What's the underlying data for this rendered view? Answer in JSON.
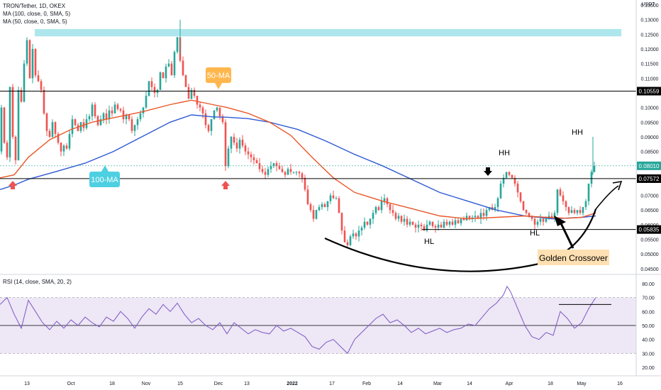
{
  "legend": {
    "title": "TRON/Tether, 1D, OKEX",
    "ma100": "MA (100, close, 0, SMA, 5)",
    "ma50": "MA (50, close, 0, SMA, 5)",
    "rsi": "RSI (14, close, SMA, 20, 2)"
  },
  "currency": "USDT",
  "annotations": {
    "ma50_label": "50-MA",
    "ma100_label": "100-MA",
    "golden_crossover": "Golden Crossover",
    "hh1": "HH",
    "hh2": "HH",
    "hl1": "HL",
    "hl2": "HL"
  },
  "price_badges": {
    "resistance": "0.10559",
    "current": "0.08010",
    "neckline": "0.07572",
    "support": "0.05835"
  },
  "colors": {
    "bull": "#26a69a",
    "bear": "#ef5350",
    "ma100": "#2f5bd3",
    "ma50": "#e8572a",
    "rsi": "#7e57c2",
    "rsi_band": "#ede7f6",
    "zone": "#9fe3ea"
  },
  "chart_data": {
    "type": "candlestick",
    "price_axis": {
      "ticks": [
        "0.13500",
        "0.13000",
        "0.12500",
        "0.12000",
        "0.11500",
        "0.11000",
        "0.10500",
        "0.10000",
        "0.09500",
        "0.09000",
        "0.08500",
        "0.08000",
        "0.07500",
        "0.07000",
        "0.06500",
        "0.06000",
        "0.05500",
        "0.05000",
        "0.04500"
      ],
      "range": [
        0.0435,
        0.1355
      ]
    },
    "time_axis": {
      "labels": [
        "13",
        "Oct",
        "18",
        "Nov",
        "15",
        "Dec",
        "13",
        "2022",
        "17",
        "Feb",
        "14",
        "Mar",
        "14",
        "Apr",
        "18",
        "May",
        "16"
      ]
    },
    "levels": [
      {
        "name": "resistance",
        "value": 0.10559
      },
      {
        "name": "neckline",
        "value": 0.07572
      },
      {
        "name": "support",
        "value": 0.05835
      },
      {
        "name": "resistance-zone",
        "from": 0.1243,
        "to": 0.1268
      }
    ],
    "ohlc_path": [
      [
        0,
        0.085
      ],
      [
        4,
        0.1
      ],
      [
        8,
        0.088
      ],
      [
        12,
        0.083
      ],
      [
        16,
        0.107
      ],
      [
        20,
        0.09
      ],
      [
        24,
        0.082
      ],
      [
        28,
        0.106
      ],
      [
        32,
        0.102
      ],
      [
        36,
        0.115
      ],
      [
        40,
        0.123
      ],
      [
        44,
        0.11
      ],
      [
        48,
        0.12
      ],
      [
        52,
        0.111
      ],
      [
        56,
        0.109
      ],
      [
        60,
        0.106
      ],
      [
        64,
        0.098
      ],
      [
        68,
        0.092
      ],
      [
        72,
        0.09
      ],
      [
        76,
        0.095
      ],
      [
        80,
        0.091
      ],
      [
        84,
        0.088
      ],
      [
        88,
        0.085
      ],
      [
        92,
        0.087
      ],
      [
        96,
        0.086
      ],
      [
        100,
        0.091
      ],
      [
        104,
        0.096
      ],
      [
        108,
        0.094
      ],
      [
        112,
        0.092
      ],
      [
        116,
        0.095
      ],
      [
        120,
        0.093
      ],
      [
        124,
        0.096
      ],
      [
        128,
        0.097
      ],
      [
        132,
        0.101
      ],
      [
        136,
        0.097
      ],
      [
        140,
        0.094
      ],
      [
        144,
        0.096
      ],
      [
        148,
        0.098
      ],
      [
        152,
        0.096
      ],
      [
        156,
        0.099
      ],
      [
        160,
        0.098
      ],
      [
        164,
        0.101
      ],
      [
        168,
        0.0995
      ],
      [
        172,
        0.099
      ],
      [
        176,
        0.096
      ],
      [
        180,
        0.0975
      ],
      [
        184,
        0.096
      ],
      [
        188,
        0.092
      ],
      [
        192,
        0.094
      ],
      [
        196,
        0.096
      ],
      [
        200,
        0.098
      ],
      [
        204,
        0.1
      ],
      [
        208,
        0.104
      ],
      [
        212,
        0.109
      ],
      [
        216,
        0.107
      ],
      [
        220,
        0.105
      ],
      [
        224,
        0.106
      ],
      [
        228,
        0.112
      ],
      [
        232,
        0.11
      ],
      [
        236,
        0.114
      ],
      [
        240,
        0.115
      ],
      [
        244,
        0.111
      ],
      [
        248,
        0.119
      ],
      [
        252,
        0.124
      ],
      [
        256,
        0.116
      ],
      [
        260,
        0.111
      ],
      [
        264,
        0.107
      ],
      [
        268,
        0.103
      ],
      [
        272,
        0.106
      ],
      [
        276,
        0.104
      ],
      [
        280,
        0.101
      ],
      [
        284,
        0.1
      ],
      [
        288,
        0.098
      ],
      [
        292,
        0.094
      ],
      [
        296,
        0.092
      ],
      [
        300,
        0.096
      ],
      [
        304,
        0.099
      ],
      [
        308,
        0.1
      ],
      [
        312,
        0.097
      ],
      [
        316,
        0.095
      ],
      [
        320,
        0.08
      ],
      [
        324,
        0.086
      ],
      [
        328,
        0.09
      ],
      [
        332,
        0.088
      ],
      [
        336,
        0.086
      ],
      [
        340,
        0.089
      ],
      [
        344,
        0.087
      ],
      [
        348,
        0.085
      ],
      [
        352,
        0.084
      ],
      [
        356,
        0.083
      ],
      [
        360,
        0.082
      ],
      [
        364,
        0.081
      ],
      [
        368,
        0.079
      ],
      [
        372,
        0.078
      ],
      [
        376,
        0.077
      ],
      [
        380,
        0.079
      ],
      [
        384,
        0.08
      ],
      [
        388,
        0.081
      ],
      [
        392,
        0.08
      ],
      [
        396,
        0.079
      ],
      [
        400,
        0.078
      ],
      [
        404,
        0.077
      ],
      [
        408,
        0.079
      ],
      [
        412,
        0.078
      ],
      [
        416,
        0.078
      ],
      [
        420,
        0.078
      ],
      [
        424,
        0.0775
      ],
      [
        428,
        0.076
      ],
      [
        432,
        0.072
      ],
      [
        436,
        0.067
      ],
      [
        440,
        0.065
      ],
      [
        444,
        0.062
      ],
      [
        448,
        0.065
      ],
      [
        452,
        0.066
      ],
      [
        456,
        0.067
      ],
      [
        460,
        0.066
      ],
      [
        464,
        0.068
      ],
      [
        468,
        0.07
      ],
      [
        472,
        0.069
      ],
      [
        476,
        0.069
      ],
      [
        480,
        0.064
      ],
      [
        484,
        0.058
      ],
      [
        488,
        0.054
      ],
      [
        492,
        0.053
      ],
      [
        496,
        0.056
      ],
      [
        500,
        0.057
      ],
      [
        504,
        0.056
      ],
      [
        508,
        0.058
      ],
      [
        512,
        0.059
      ],
      [
        516,
        0.061
      ],
      [
        520,
        0.06
      ],
      [
        524,
        0.062
      ],
      [
        528,
        0.064
      ],
      [
        532,
        0.066
      ],
      [
        536,
        0.065
      ],
      [
        540,
        0.068
      ],
      [
        544,
        0.069
      ],
      [
        548,
        0.067
      ],
      [
        552,
        0.065
      ],
      [
        556,
        0.064
      ],
      [
        560,
        0.062
      ],
      [
        564,
        0.063
      ],
      [
        568,
        0.061
      ],
      [
        572,
        0.062
      ],
      [
        576,
        0.06
      ],
      [
        580,
        0.061
      ],
      [
        584,
        0.06
      ],
      [
        588,
        0.059
      ],
      [
        592,
        0.06
      ],
      [
        596,
        0.0595
      ],
      [
        600,
        0.058
      ],
      [
        604,
        0.06
      ],
      [
        608,
        0.061
      ],
      [
        612,
        0.0595
      ],
      [
        616,
        0.059
      ],
      [
        620,
        0.06
      ],
      [
        624,
        0.059
      ],
      [
        628,
        0.061
      ],
      [
        632,
        0.06
      ],
      [
        636,
        0.061
      ],
      [
        640,
        0.06
      ],
      [
        644,
        0.0615
      ],
      [
        648,
        0.0605
      ],
      [
        652,
        0.062
      ],
      [
        656,
        0.0615
      ],
      [
        660,
        0.063
      ],
      [
        664,
        0.062
      ],
      [
        668,
        0.0625
      ],
      [
        672,
        0.063
      ],
      [
        676,
        0.062
      ],
      [
        680,
        0.064
      ],
      [
        684,
        0.063
      ],
      [
        688,
        0.065
      ],
      [
        692,
        0.066
      ],
      [
        696,
        0.065
      ],
      [
        700,
        0.066
      ],
      [
        704,
        0.069
      ],
      [
        708,
        0.074
      ],
      [
        712,
        0.076
      ],
      [
        716,
        0.078
      ],
      [
        720,
        0.077
      ],
      [
        724,
        0.076
      ],
      [
        728,
        0.074
      ],
      [
        732,
        0.071
      ],
      [
        736,
        0.068
      ],
      [
        740,
        0.065
      ],
      [
        744,
        0.064
      ],
      [
        748,
        0.063
      ],
      [
        752,
        0.062
      ],
      [
        756,
        0.06
      ],
      [
        760,
        0.061
      ],
      [
        764,
        0.062
      ],
      [
        768,
        0.061
      ],
      [
        772,
        0.062
      ],
      [
        776,
        0.063
      ],
      [
        780,
        0.0625
      ],
      [
        784,
        0.064
      ],
      [
        788,
        0.072
      ],
      [
        792,
        0.07
      ],
      [
        796,
        0.068
      ],
      [
        800,
        0.066
      ],
      [
        804,
        0.064
      ],
      [
        808,
        0.065
      ],
      [
        812,
        0.064
      ],
      [
        816,
        0.065
      ],
      [
        820,
        0.064
      ],
      [
        824,
        0.066
      ],
      [
        828,
        0.068
      ],
      [
        832,
        0.074
      ],
      [
        836,
        0.078
      ],
      [
        840,
        0.0801
      ]
    ],
    "ma100_path": [
      [
        0,
        0.072
      ],
      [
        20,
        0.0735
      ],
      [
        40,
        0.0755
      ],
      [
        80,
        0.0782
      ],
      [
        120,
        0.081
      ],
      [
        160,
        0.085
      ],
      [
        200,
        0.09
      ],
      [
        240,
        0.095
      ],
      [
        270,
        0.0975
      ],
      [
        300,
        0.0968
      ],
      [
        320,
        0.0967
      ],
      [
        350,
        0.0962
      ],
      [
        380,
        0.095
      ],
      [
        420,
        0.0925
      ],
      [
        460,
        0.0885
      ],
      [
        500,
        0.084
      ],
      [
        540,
        0.08
      ],
      [
        580,
        0.0755
      ],
      [
        620,
        0.071
      ],
      [
        660,
        0.068
      ],
      [
        700,
        0.065
      ],
      [
        740,
        0.063
      ],
      [
        780,
        0.062
      ],
      [
        820,
        0.0625
      ],
      [
        840,
        0.063
      ]
    ],
    "ma50_path": [
      [
        0,
        0.076
      ],
      [
        20,
        0.077
      ],
      [
        40,
        0.083
      ],
      [
        70,
        0.089
      ],
      [
        100,
        0.0925
      ],
      [
        130,
        0.095
      ],
      [
        160,
        0.0965
      ],
      [
        200,
        0.0985
      ],
      [
        240,
        0.101
      ],
      [
        270,
        0.1025
      ],
      [
        300,
        0.101
      ],
      [
        320,
        0.1
      ],
      [
        350,
        0.098
      ],
      [
        380,
        0.095
      ],
      [
        410,
        0.0905
      ],
      [
        440,
        0.083
      ],
      [
        470,
        0.076
      ],
      [
        500,
        0.071
      ],
      [
        540,
        0.068
      ],
      [
        580,
        0.0655
      ],
      [
        620,
        0.063
      ],
      [
        660,
        0.062
      ],
      [
        700,
        0.0625
      ],
      [
        740,
        0.063
      ],
      [
        770,
        0.0625
      ],
      [
        800,
        0.0622
      ],
      [
        820,
        0.0625
      ],
      [
        840,
        0.064
      ]
    ],
    "rsi": {
      "axis_ticks": [
        "80.00",
        "70.00",
        "60.00",
        "50.00",
        "40.00",
        "30.00",
        "20.00"
      ],
      "range": [
        15,
        85
      ],
      "overbought": 70,
      "oversold": 30,
      "midline": 50,
      "path": [
        [
          0,
          65
        ],
        [
          10,
          70
        ],
        [
          20,
          58
        ],
        [
          30,
          48
        ],
        [
          40,
          68
        ],
        [
          50,
          60
        ],
        [
          60,
          52
        ],
        [
          70,
          47
        ],
        [
          80,
          53
        ],
        [
          90,
          48
        ],
        [
          100,
          54
        ],
        [
          110,
          50
        ],
        [
          120,
          56
        ],
        [
          130,
          52
        ],
        [
          140,
          49
        ],
        [
          150,
          56
        ],
        [
          160,
          53
        ],
        [
          170,
          60
        ],
        [
          180,
          55
        ],
        [
          190,
          48
        ],
        [
          200,
          56
        ],
        [
          210,
          62
        ],
        [
          220,
          58
        ],
        [
          230,
          65
        ],
        [
          240,
          60
        ],
        [
          250,
          66
        ],
        [
          260,
          58
        ],
        [
          270,
          52
        ],
        [
          280,
          55
        ],
        [
          290,
          50
        ],
        [
          300,
          47
        ],
        [
          310,
          52
        ],
        [
          320,
          44
        ],
        [
          330,
          52
        ],
        [
          340,
          48
        ],
        [
          350,
          44
        ],
        [
          360,
          47
        ],
        [
          370,
          45
        ],
        [
          380,
          44
        ],
        [
          390,
          50
        ],
        [
          400,
          46
        ],
        [
          410,
          48
        ],
        [
          420,
          45
        ],
        [
          430,
          42
        ],
        [
          440,
          35
        ],
        [
          450,
          33
        ],
        [
          460,
          38
        ],
        [
          470,
          40
        ],
        [
          480,
          35
        ],
        [
          490,
          30
        ],
        [
          500,
          40
        ],
        [
          510,
          45
        ],
        [
          520,
          50
        ],
        [
          530,
          55
        ],
        [
          540,
          58
        ],
        [
          550,
          52
        ],
        [
          560,
          54
        ],
        [
          570,
          50
        ],
        [
          580,
          45
        ],
        [
          590,
          48
        ],
        [
          600,
          44
        ],
        [
          610,
          46
        ],
        [
          620,
          48
        ],
        [
          630,
          45
        ],
        [
          640,
          47
        ],
        [
          650,
          48
        ],
        [
          660,
          51
        ],
        [
          670,
          50
        ],
        [
          680,
          56
        ],
        [
          690,
          62
        ],
        [
          700,
          66
        ],
        [
          710,
          72
        ],
        [
          715,
          78
        ],
        [
          720,
          74
        ],
        [
          730,
          62
        ],
        [
          740,
          50
        ],
        [
          750,
          42
        ],
        [
          760,
          40
        ],
        [
          770,
          45
        ],
        [
          780,
          43
        ],
        [
          790,
          60
        ],
        [
          800,
          55
        ],
        [
          810,
          48
        ],
        [
          820,
          52
        ],
        [
          830,
          62
        ],
        [
          840,
          70
        ]
      ],
      "level_segment": {
        "x1": 788,
        "x2": 862,
        "value": 65
      }
    }
  }
}
